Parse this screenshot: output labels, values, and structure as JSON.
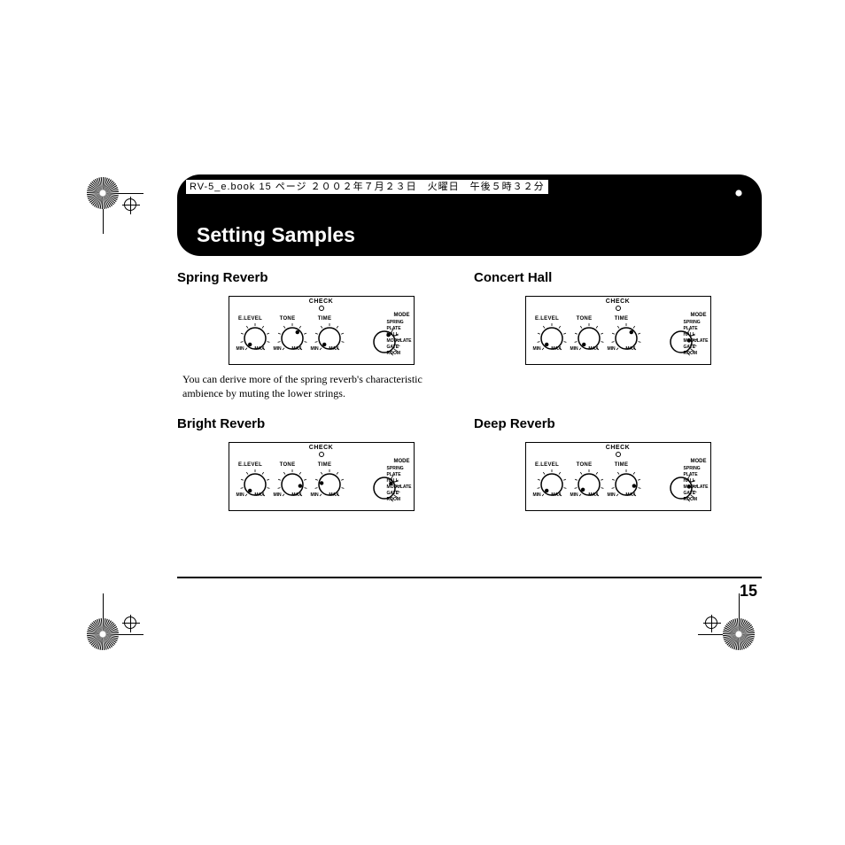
{
  "ebook_header": "RV-5_e.book 15 ページ ２００２年７月２３日　火曜日　午後５時３２分",
  "page_title": "Setting Samples",
  "page_number": "15",
  "panel_labels": {
    "check": "CHECK",
    "mode": "MODE",
    "knobs": [
      "E.LEVEL",
      "TONE",
      "TIME"
    ],
    "min": "MIN",
    "max": "MAX",
    "modes": [
      "SPRING",
      "PLATE",
      "HALL",
      "MODULATE",
      "GATE",
      "ROOM"
    ]
  },
  "samples": [
    {
      "title": "Spring Reverb",
      "desc": "You can derive more of the spring reverb's characteristic ambience by muting the lower strings.",
      "knob_angles": [
        -140,
        40,
        -140
      ],
      "mode_angle": -60,
      "mode_selected": 0
    },
    {
      "title": "Concert Hall",
      "desc": "",
      "knob_angles": [
        -140,
        -140,
        40
      ],
      "mode_angle": -10,
      "mode_selected": 2
    },
    {
      "title": "Bright Reverb",
      "desc": "",
      "knob_angles": [
        -140,
        100,
        -80
      ],
      "mode_angle": -35,
      "mode_selected": 1
    },
    {
      "title": "Deep Reverb",
      "desc": "",
      "knob_angles": [
        -140,
        -130,
        100
      ],
      "mode_angle": -10,
      "mode_selected": 2
    }
  ],
  "colors": {
    "bg": "#ffffff",
    "ink": "#000000"
  }
}
